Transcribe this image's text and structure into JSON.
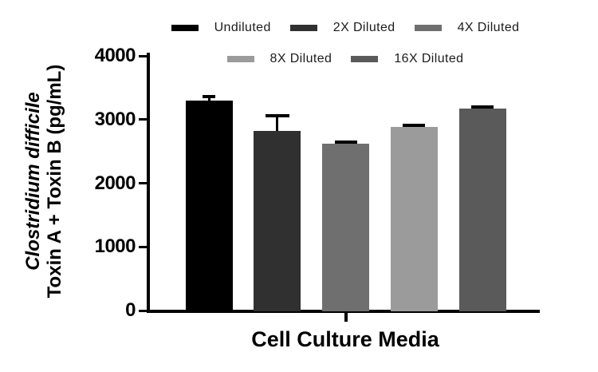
{
  "chart_data": {
    "type": "bar",
    "title": "",
    "xlabel": "Cell Culture Media",
    "ylabel_line1": "Clostridium difficile",
    "ylabel_line2": "Toxin A + Toxin B (pg/mL)",
    "ylim": [
      0,
      4000
    ],
    "yticks": [
      0,
      1000,
      2000,
      3000,
      4000
    ],
    "grid": false,
    "legend_position": "top",
    "legend_rows": [
      [
        0,
        1,
        2
      ],
      [
        3,
        4
      ]
    ],
    "categories": [
      "Undiluted",
      "2X Diluted",
      "4X Diluted",
      "8X Diluted",
      "16X Diluted"
    ],
    "series": [
      {
        "name": "Undiluted",
        "value": 3300,
        "error": 60,
        "color": "#000000"
      },
      {
        "name": "2X Diluted",
        "value": 2820,
        "error": 240,
        "color": "#303030"
      },
      {
        "name": "4X Diluted",
        "value": 2620,
        "error": 25,
        "color": "#6f6f6f"
      },
      {
        "name": "8X Diluted",
        "value": 2885,
        "error": 30,
        "color": "#9b9b9b"
      },
      {
        "name": "16X Diluted",
        "value": 3175,
        "error": 20,
        "color": "#5a5a5a"
      }
    ],
    "error_bar_color": "#000000",
    "axis_color": "#000000"
  }
}
